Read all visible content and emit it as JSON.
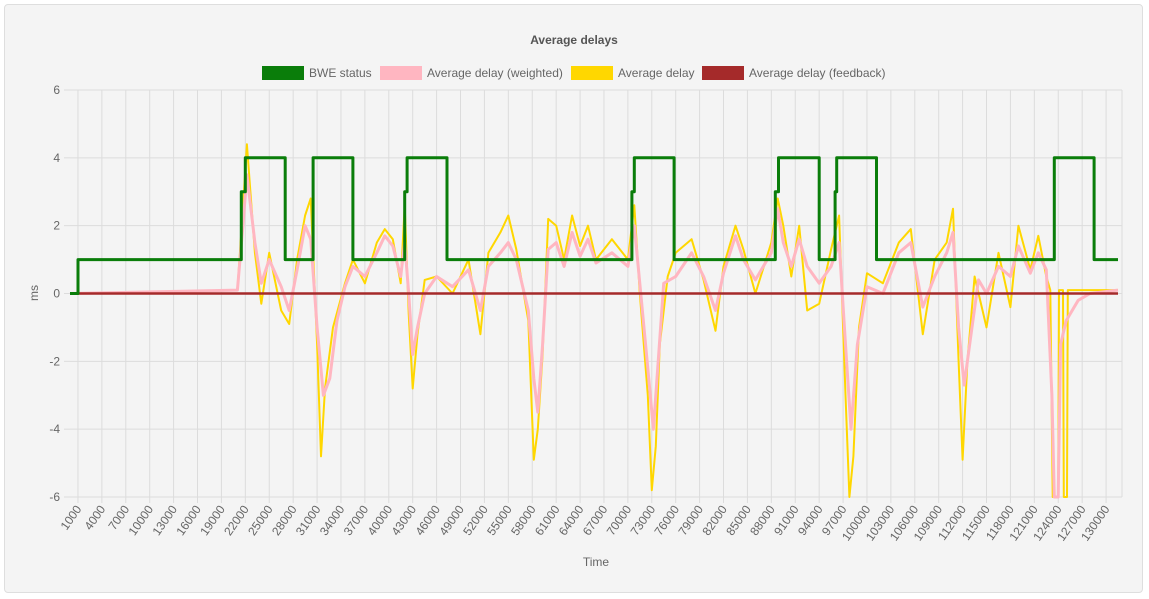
{
  "colors": {
    "bwe": "#0a7d0a",
    "weighted": "#ffb6c1",
    "avg": "#ffd700",
    "feedback": "#a52a2a",
    "panel_bg": "#f4f4f4",
    "grid": "#dcdcdc"
  },
  "chart_data": {
    "type": "line",
    "title": "Average delays",
    "xlabel": "Time",
    "ylabel": "ms",
    "ylim": [
      -6,
      6
    ],
    "xlim": [
      0,
      132000
    ],
    "y_ticks": [
      "6",
      "4",
      "2",
      "0",
      "-2",
      "-4",
      "-6"
    ],
    "x_ticks": [
      "1000",
      "4000",
      "7000",
      "10000",
      "13000",
      "16000",
      "19000",
      "22000",
      "25000",
      "28000",
      "31000",
      "34000",
      "37000",
      "40000",
      "43000",
      "46000",
      "49000",
      "52000",
      "55000",
      "58000",
      "61000",
      "64000",
      "67000",
      "70000",
      "73000",
      "76000",
      "79000",
      "82000",
      "85000",
      "88000",
      "91000",
      "94000",
      "97000",
      "100000",
      "103000",
      "106000",
      "109000",
      "112000",
      "115000",
      "118000",
      "121000",
      "124000",
      "127000",
      "130000"
    ],
    "grid": true,
    "legend_position": "top",
    "series": [
      {
        "name": "BWE status",
        "points": [
          [
            0,
            0
          ],
          [
            1000,
            0
          ],
          [
            1000,
            1
          ],
          [
            21500,
            1
          ],
          [
            21500,
            3
          ],
          [
            22000,
            3
          ],
          [
            22000,
            4
          ],
          [
            27000,
            4
          ],
          [
            27000,
            1
          ],
          [
            30500,
            1
          ],
          [
            30500,
            4
          ],
          [
            35500,
            4
          ],
          [
            35500,
            1
          ],
          [
            42000,
            1
          ],
          [
            42000,
            3
          ],
          [
            42300,
            3
          ],
          [
            42300,
            4
          ],
          [
            47300,
            4
          ],
          [
            47300,
            1
          ],
          [
            70500,
            1
          ],
          [
            70500,
            3
          ],
          [
            70800,
            3
          ],
          [
            70800,
            4
          ],
          [
            75800,
            4
          ],
          [
            75800,
            1
          ],
          [
            88500,
            1
          ],
          [
            88500,
            3
          ],
          [
            88900,
            3
          ],
          [
            88900,
            4
          ],
          [
            94000,
            4
          ],
          [
            94000,
            1
          ],
          [
            96000,
            1
          ],
          [
            96000,
            3
          ],
          [
            96200,
            3
          ],
          [
            96200,
            4
          ],
          [
            101200,
            4
          ],
          [
            101200,
            1
          ],
          [
            123500,
            1
          ],
          [
            123500,
            4
          ],
          [
            128500,
            4
          ],
          [
            128500,
            1
          ],
          [
            131500,
            1
          ]
        ]
      },
      {
        "name": "Average delay (weighted)",
        "points": [
          [
            0,
            0
          ],
          [
            21000,
            0.1
          ],
          [
            21700,
            2
          ],
          [
            22200,
            3.5
          ],
          [
            23200,
            1.5
          ],
          [
            24000,
            0.3
          ],
          [
            25000,
            1
          ],
          [
            26500,
            0.2
          ],
          [
            27500,
            -0.5
          ],
          [
            28500,
            0.7
          ],
          [
            29500,
            2
          ],
          [
            30200,
            1.6
          ],
          [
            31000,
            -1
          ],
          [
            31800,
            -3
          ],
          [
            32600,
            -2.5
          ],
          [
            33500,
            -0.8
          ],
          [
            34500,
            0.2
          ],
          [
            35500,
            0.8
          ],
          [
            37000,
            0.5
          ],
          [
            38500,
            1.2
          ],
          [
            39500,
            1.7
          ],
          [
            40500,
            1.4
          ],
          [
            41500,
            0.5
          ],
          [
            42000,
            1.5
          ],
          [
            42500,
            0
          ],
          [
            43000,
            -1.8
          ],
          [
            43600,
            -1
          ],
          [
            44500,
            0
          ],
          [
            46000,
            0.5
          ],
          [
            48000,
            0.2
          ],
          [
            50000,
            0.7
          ],
          [
            51500,
            -0.5
          ],
          [
            52500,
            0.8
          ],
          [
            54000,
            1.2
          ],
          [
            55000,
            1.5
          ],
          [
            56000,
            1
          ],
          [
            57500,
            -0.5
          ],
          [
            58200,
            -2.5
          ],
          [
            58700,
            -3.5
          ],
          [
            59300,
            -1.5
          ],
          [
            60000,
            1.3
          ],
          [
            61000,
            1.5
          ],
          [
            62000,
            0.8
          ],
          [
            63000,
            1.8
          ],
          [
            64000,
            1.1
          ],
          [
            65000,
            1.6
          ],
          [
            66000,
            0.9
          ],
          [
            68000,
            1.2
          ],
          [
            70000,
            0.8
          ],
          [
            70800,
            2
          ],
          [
            71500,
            0.3
          ],
          [
            72500,
            -2.2
          ],
          [
            73200,
            -4
          ],
          [
            73800,
            -2
          ],
          [
            74500,
            0.3
          ],
          [
            76000,
            0.5
          ],
          [
            78000,
            1.2
          ],
          [
            79500,
            0.5
          ],
          [
            81000,
            -0.5
          ],
          [
            82000,
            0.6
          ],
          [
            83500,
            1.7
          ],
          [
            84500,
            1
          ],
          [
            86000,
            0.4
          ],
          [
            88000,
            1.2
          ],
          [
            88800,
            2.5
          ],
          [
            89500,
            1.5
          ],
          [
            90500,
            0.8
          ],
          [
            91500,
            1.6
          ],
          [
            92500,
            0.8
          ],
          [
            94000,
            0.3
          ],
          [
            95500,
            0.8
          ],
          [
            96500,
            1.5
          ],
          [
            97300,
            -1.5
          ],
          [
            98000,
            -4
          ],
          [
            98800,
            -1.5
          ],
          [
            100000,
            0.2
          ],
          [
            102000,
            0
          ],
          [
            104000,
            1.2
          ],
          [
            105500,
            1.5
          ],
          [
            107000,
            -0.4
          ],
          [
            108500,
            0.5
          ],
          [
            110000,
            1.2
          ],
          [
            110800,
            1.8
          ],
          [
            111500,
            -1
          ],
          [
            112200,
            -2.7
          ],
          [
            113000,
            -1.3
          ],
          [
            114000,
            0.4
          ],
          [
            115000,
            0
          ],
          [
            116500,
            0.8
          ],
          [
            118000,
            0.5
          ],
          [
            119000,
            1.4
          ],
          [
            120500,
            0.6
          ],
          [
            121500,
            1.2
          ],
          [
            122500,
            0.7
          ],
          [
            123200,
            -3
          ],
          [
            123500,
            -6
          ],
          [
            124000,
            -6
          ],
          [
            124300,
            -1.5
          ],
          [
            125000,
            -0.8
          ],
          [
            126500,
            -0.2
          ],
          [
            128000,
            0
          ],
          [
            131500,
            0.1
          ]
        ]
      },
      {
        "name": "Average delay",
        "points": [
          [
            0,
            0
          ],
          [
            21000,
            0.1
          ],
          [
            21700,
            2.5
          ],
          [
            22200,
            4.4
          ],
          [
            23200,
            1.2
          ],
          [
            24000,
            -0.3
          ],
          [
            25000,
            1.2
          ],
          [
            26500,
            -0.5
          ],
          [
            27500,
            -0.9
          ],
          [
            28500,
            1
          ],
          [
            29500,
            2.3
          ],
          [
            30200,
            2.8
          ],
          [
            31000,
            -1.5
          ],
          [
            31500,
            -4.8
          ],
          [
            32000,
            -2.8
          ],
          [
            33000,
            -1
          ],
          [
            34500,
            0.3
          ],
          [
            35500,
            1
          ],
          [
            37000,
            0.3
          ],
          [
            38500,
            1.5
          ],
          [
            39500,
            1.9
          ],
          [
            40500,
            1.6
          ],
          [
            41500,
            0.3
          ],
          [
            42000,
            2.6
          ],
          [
            42500,
            -0.6
          ],
          [
            43000,
            -2.8
          ],
          [
            43600,
            -1.2
          ],
          [
            44500,
            0.4
          ],
          [
            46000,
            0.5
          ],
          [
            48000,
            0
          ],
          [
            50000,
            1
          ],
          [
            51500,
            -1.2
          ],
          [
            52500,
            1.2
          ],
          [
            54000,
            1.8
          ],
          [
            55000,
            2.3
          ],
          [
            56000,
            1.3
          ],
          [
            57500,
            -0.8
          ],
          [
            58200,
            -4.9
          ],
          [
            58700,
            -4
          ],
          [
            59300,
            -1.8
          ],
          [
            60000,
            2.2
          ],
          [
            61000,
            2
          ],
          [
            62000,
            1
          ],
          [
            63000,
            2.3
          ],
          [
            64000,
            1.4
          ],
          [
            65000,
            2
          ],
          [
            66000,
            1
          ],
          [
            68000,
            1.6
          ],
          [
            70000,
            1
          ],
          [
            70800,
            2.6
          ],
          [
            71500,
            0
          ],
          [
            72500,
            -3
          ],
          [
            73000,
            -5.8
          ],
          [
            73500,
            -4.5
          ],
          [
            74000,
            -1.5
          ],
          [
            75000,
            0.5
          ],
          [
            76000,
            1.2
          ],
          [
            78000,
            1.6
          ],
          [
            79500,
            0.4
          ],
          [
            81000,
            -1.1
          ],
          [
            82000,
            0.8
          ],
          [
            83500,
            2
          ],
          [
            84500,
            1.3
          ],
          [
            86000,
            0
          ],
          [
            88000,
            1.5
          ],
          [
            88800,
            2.8
          ],
          [
            89500,
            2
          ],
          [
            90500,
            0.5
          ],
          [
            91500,
            2
          ],
          [
            92500,
            -0.5
          ],
          [
            94000,
            -0.3
          ],
          [
            95500,
            1.3
          ],
          [
            96500,
            2.3
          ],
          [
            97300,
            -3
          ],
          [
            97800,
            -6
          ],
          [
            98300,
            -4.8
          ],
          [
            99000,
            -1
          ],
          [
            100000,
            0.6
          ],
          [
            102000,
            0.3
          ],
          [
            104000,
            1.5
          ],
          [
            105500,
            1.9
          ],
          [
            107000,
            -1.2
          ],
          [
            108500,
            1
          ],
          [
            110000,
            1.5
          ],
          [
            110800,
            2.5
          ],
          [
            111500,
            -2
          ],
          [
            112000,
            -4.9
          ],
          [
            112600,
            -2
          ],
          [
            113500,
            0.5
          ],
          [
            115000,
            -1
          ],
          [
            116500,
            1.2
          ],
          [
            118000,
            -0.4
          ],
          [
            119000,
            2
          ],
          [
            120500,
            0.7
          ],
          [
            121500,
            1.7
          ],
          [
            122500,
            0.5
          ],
          [
            123000,
            0.1
          ],
          [
            123300,
            -6
          ],
          [
            124000,
            -6
          ],
          [
            124100,
            0.1
          ],
          [
            124600,
            0.1
          ],
          [
            124700,
            -6
          ],
          [
            125100,
            -6
          ],
          [
            125200,
            0.1
          ],
          [
            126500,
            0.1
          ],
          [
            128000,
            0.1
          ],
          [
            131500,
            0.1
          ]
        ]
      },
      {
        "name": "Average delay (feedback)",
        "points": [
          [
            0,
            0
          ],
          [
            131500,
            0
          ]
        ]
      }
    ]
  }
}
